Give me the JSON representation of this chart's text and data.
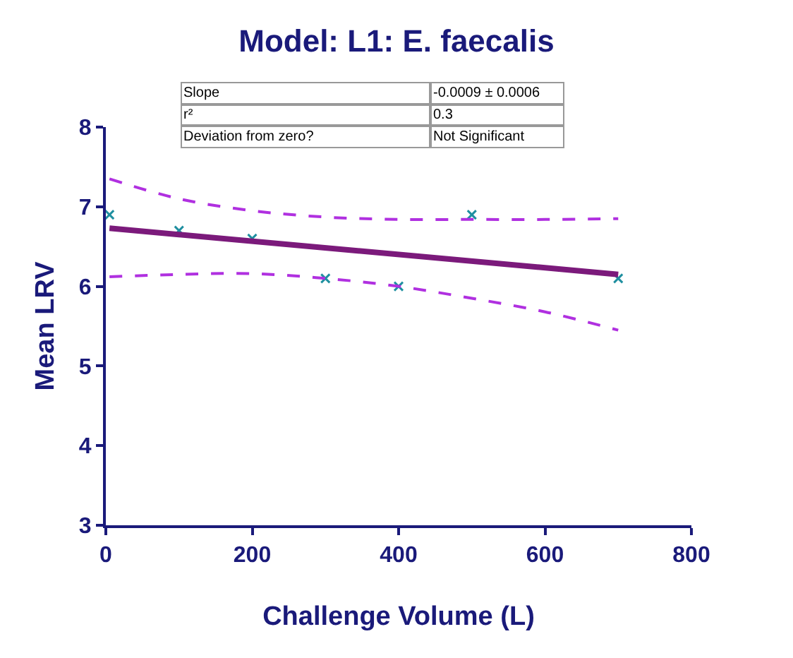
{
  "chart_data": {
    "type": "scatter",
    "title": "Model: L1: E. faecalis",
    "xlabel": "Challenge Volume (L)",
    "ylabel": "Mean LRV",
    "annotations": [
      "Slope",
      "-0.0009 ± 0.0006",
      "r²",
      "0.3",
      "Deviation from zero?",
      "Not Significant"
    ],
    "series": [
      {
        "color": "#1f8fa0",
        "marker": "cross",
        "x": [
          5,
          100,
          200,
          300,
          400,
          500,
          700
        ],
        "values": [
          6.9,
          6.7,
          6.6,
          6.1,
          6.0,
          6.9,
          6.1
        ]
      },
      {
        "type": "line",
        "color": "#7b1a7b",
        "line_style": "solid",
        "x": [
          5,
          700
        ],
        "values": [
          6.73,
          6.15
        ]
      },
      {
        "type": "line",
        "color": "#b030e0",
        "line_style": "dashed",
        "x": [
          5,
          100,
          200,
          300,
          400,
          500,
          600,
          700
        ],
        "values": [
          7.35,
          7.1,
          6.95,
          6.87,
          6.84,
          6.84,
          6.84,
          6.85
        ]
      },
      {
        "type": "line",
        "color": "#b030e0",
        "line_style": "dashed",
        "x": [
          5,
          100,
          200,
          300,
          400,
          500,
          600,
          700
        ],
        "values": [
          6.12,
          6.15,
          6.16,
          6.1,
          6.0,
          5.85,
          5.68,
          5.45
        ]
      }
    ],
    "xlim": [
      0,
      800
    ],
    "xticks": [
      0,
      200,
      400,
      600,
      800
    ],
    "ylim": [
      3,
      8
    ],
    "yticks": [
      3,
      4,
      5,
      6,
      7,
      8
    ],
    "grid": false,
    "legend": false
  }
}
